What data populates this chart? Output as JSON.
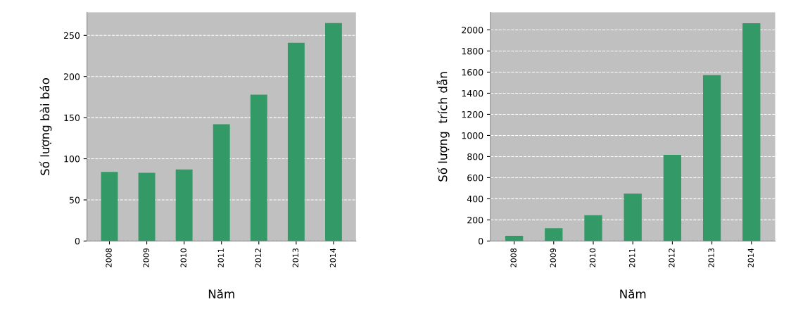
{
  "chart_data": [
    {
      "type": "bar",
      "xlabel": "Năm",
      "ylabel": "Số lượng bài báo",
      "categories": [
        "2008",
        "2009",
        "2010",
        "2011",
        "2012",
        "2013",
        "2014"
      ],
      "values": [
        84,
        83,
        87,
        142,
        178,
        241,
        265
      ],
      "color": "#339966",
      "ylim": [
        0,
        278
      ],
      "yticks": [
        0,
        50,
        100,
        150,
        200,
        250
      ],
      "grid": "y"
    },
    {
      "type": "bar",
      "xlabel": "Năm",
      "ylabel": "Số lượng  trích dẫn",
      "categories": [
        "2008",
        "2009",
        "2010",
        "2011",
        "2012",
        "2013",
        "2014"
      ],
      "values": [
        49,
        121,
        245,
        449,
        817,
        1571,
        2063
      ],
      "color": "#339966",
      "ylim": [
        0,
        2166
      ],
      "yticks": [
        0,
        200,
        400,
        600,
        800,
        1000,
        1200,
        1400,
        1600,
        1800,
        2000
      ],
      "grid": "y"
    }
  ]
}
